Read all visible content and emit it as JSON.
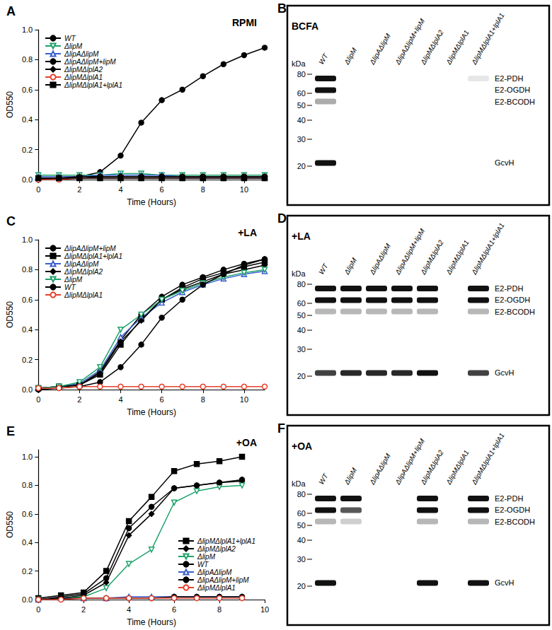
{
  "chart_data": [
    {
      "type": "line",
      "panel": "A",
      "title": "RPMI",
      "xlabel": "Time (Hours)",
      "ylabel": "OD550",
      "x": [
        0,
        1,
        2,
        3,
        4,
        5,
        6,
        7,
        8,
        9,
        10,
        11
      ],
      "xlim": [
        0,
        11
      ],
      "xticks": [
        0,
        2,
        4,
        6,
        8,
        10
      ],
      "ylim": [
        0,
        1.0
      ],
      "yticks": [
        {
          "value": 0,
          "label": "0.0"
        },
        {
          "value": 0.2,
          "label": "0.2"
        },
        {
          "value": 0.4,
          "label": "0.4"
        },
        {
          "value": 0.6,
          "label": "0.6"
        },
        {
          "value": 0.8,
          "label": "0.8"
        },
        {
          "value": 1.0,
          "label": "1.0"
        }
      ],
      "grid": false,
      "legend": "upper left",
      "series": [
        {
          "name": "WT",
          "color": "#000000",
          "marker": "circle",
          "values": [
            0.0,
            0.01,
            0.02,
            0.05,
            0.16,
            0.38,
            0.53,
            0.6,
            0.69,
            0.77,
            0.83,
            0.88
          ]
        },
        {
          "name": "ΔlipM",
          "color": "#1fa36b",
          "marker": "open triangle-down",
          "values": [
            0.03,
            0.03,
            0.03,
            0.03,
            0.04,
            0.04,
            0.03,
            0.03,
            0.03,
            0.03,
            0.03,
            0.03
          ]
        },
        {
          "name": "ΔlipAΔlipM",
          "color": "#3a5fcd",
          "marker": "open triangle",
          "values": [
            0.02,
            0.02,
            0.02,
            0.03,
            0.03,
            0.03,
            0.03,
            0.02,
            0.02,
            0.02,
            0.02,
            0.02
          ]
        },
        {
          "name": "ΔlipAΔlipM+lipM",
          "color": "#000000",
          "marker": "circle",
          "values": [
            0.01,
            0.01,
            0.01,
            0.02,
            0.02,
            0.02,
            0.02,
            0.02,
            0.02,
            0.02,
            0.02,
            0.02
          ]
        },
        {
          "name": "ΔlipMΔlplA2",
          "color": "#000000",
          "marker": "diamond",
          "values": [
            0.01,
            0.01,
            0.02,
            0.02,
            0.02,
            0.02,
            0.02,
            0.02,
            0.02,
            0.02,
            0.02,
            0.02
          ]
        },
        {
          "name": "ΔlipMΔlplA1",
          "color": "#e8412c",
          "marker": "open circle",
          "values": [
            0.0,
            0.0,
            0.01,
            0.01,
            0.01,
            0.01,
            0.01,
            0.01,
            0.01,
            0.01,
            0.01,
            0.01
          ]
        },
        {
          "name": "ΔlipMΔlplA1+lplA1",
          "color": "#000000",
          "marker": "square",
          "values": [
            0.01,
            0.01,
            0.01,
            0.01,
            0.01,
            0.01,
            0.01,
            0.01,
            0.01,
            0.01,
            0.01,
            0.01
          ]
        }
      ]
    },
    {
      "type": "line",
      "panel": "C",
      "title": "+LA",
      "xlabel": "Time (Hours)",
      "ylabel": "OD550",
      "x": [
        0,
        1,
        2,
        3,
        4,
        5,
        6,
        7,
        8,
        9,
        10,
        11
      ],
      "xlim": [
        0,
        11
      ],
      "xticks": [
        0,
        2,
        4,
        6,
        8,
        10
      ],
      "ylim": [
        0,
        1.0
      ],
      "yticks": [
        {
          "value": 0,
          "label": "0.0"
        },
        {
          "value": 0.2,
          "label": "0.2"
        },
        {
          "value": 0.4,
          "label": "0.4"
        },
        {
          "value": 0.6,
          "label": "0.6"
        },
        {
          "value": 0.8,
          "label": "0.8"
        },
        {
          "value": 1.0,
          "label": "1.0"
        }
      ],
      "grid": false,
      "legend": "upper left",
      "series": [
        {
          "name": "ΔlipAΔlipM+lipM",
          "color": "#000000",
          "marker": "circle",
          "values": [
            0.01,
            0.02,
            0.03,
            0.12,
            0.33,
            0.5,
            0.62,
            0.7,
            0.75,
            0.8,
            0.84,
            0.87
          ]
        },
        {
          "name": "ΔlipMΔlplA1+lplA1",
          "color": "#000000",
          "marker": "square",
          "values": [
            0.01,
            0.02,
            0.03,
            0.1,
            0.3,
            0.47,
            0.6,
            0.68,
            0.74,
            0.78,
            0.82,
            0.85
          ]
        },
        {
          "name": "ΔlipAΔlipM",
          "color": "#3a5fcd",
          "marker": "open triangle",
          "values": [
            0.01,
            0.02,
            0.04,
            0.13,
            0.35,
            0.48,
            0.58,
            0.65,
            0.7,
            0.74,
            0.77,
            0.79
          ]
        },
        {
          "name": "ΔlipMΔlplA2",
          "color": "#000000",
          "marker": "diamond",
          "values": [
            0.01,
            0.02,
            0.03,
            0.11,
            0.32,
            0.46,
            0.6,
            0.67,
            0.72,
            0.77,
            0.8,
            0.83
          ]
        },
        {
          "name": "ΔlipM",
          "color": "#1fa36b",
          "marker": "open triangle-down",
          "values": [
            0.01,
            0.02,
            0.05,
            0.15,
            0.4,
            0.5,
            0.6,
            0.66,
            0.71,
            0.75,
            0.78,
            0.8
          ]
        },
        {
          "name": "WT",
          "color": "#000000",
          "marker": "circle",
          "values": [
            0.0,
            0.01,
            0.02,
            0.05,
            0.15,
            0.3,
            0.48,
            0.6,
            0.7,
            0.77,
            0.83,
            0.87
          ]
        },
        {
          "name": "ΔlipMΔlplA1",
          "color": "#e8412c",
          "marker": "open circle",
          "values": [
            0.01,
            0.01,
            0.02,
            0.02,
            0.02,
            0.02,
            0.02,
            0.02,
            0.02,
            0.02,
            0.02,
            0.02
          ]
        }
      ]
    },
    {
      "type": "line",
      "panel": "E",
      "title": "+OA",
      "xlabel": "Time (Hours)",
      "ylabel": "OD550",
      "x": [
        0,
        1,
        2,
        3,
        4,
        5,
        6,
        7,
        8,
        9
      ],
      "xlim": [
        0,
        10
      ],
      "xticks": [
        0,
        2,
        4,
        6,
        8,
        10
      ],
      "ylim": [
        0,
        1.05
      ],
      "yticks": [
        {
          "value": 0,
          "label": "0.0"
        },
        {
          "value": 0.2,
          "label": "0.2"
        },
        {
          "value": 0.4,
          "label": "0.4"
        },
        {
          "value": 0.6,
          "label": "0.6"
        },
        {
          "value": 0.8,
          "label": "0.8"
        },
        {
          "value": 1.0,
          "label": "1.0"
        }
      ],
      "grid": false,
      "legend": "lower right",
      "series": [
        {
          "name": "ΔlipMΔlplA1+lplA1",
          "color": "#000000",
          "marker": "square",
          "values": [
            0.01,
            0.03,
            0.05,
            0.2,
            0.55,
            0.72,
            0.9,
            0.95,
            0.97,
            1.0
          ]
        },
        {
          "name": "ΔlipMΔlplA2",
          "color": "#000000",
          "marker": "diamond",
          "values": [
            0.0,
            0.01,
            0.03,
            0.12,
            0.45,
            0.6,
            0.78,
            0.8,
            0.82,
            0.83
          ]
        },
        {
          "name": "ΔlipM",
          "color": "#1fa36b",
          "marker": "open triangle-down",
          "values": [
            0.0,
            0.01,
            0.02,
            0.08,
            0.25,
            0.35,
            0.68,
            0.76,
            0.79,
            0.8
          ]
        },
        {
          "name": "WT",
          "color": "#000000",
          "marker": "circle",
          "values": [
            0.0,
            0.02,
            0.04,
            0.15,
            0.5,
            0.65,
            0.78,
            0.8,
            0.82,
            0.84
          ]
        },
        {
          "name": "ΔlipAΔlipM",
          "color": "#3a5fcd",
          "marker": "open triangle",
          "values": [
            0.0,
            0.01,
            0.01,
            0.01,
            0.02,
            0.02,
            0.02,
            0.02,
            0.02,
            0.02
          ]
        },
        {
          "name": "ΔlipAΔlipM+lipM",
          "color": "#000000",
          "marker": "circle",
          "values": [
            0.0,
            0.01,
            0.01,
            0.01,
            0.01,
            0.01,
            0.02,
            0.02,
            0.02,
            0.02
          ]
        },
        {
          "name": "ΔlipMΔlplA1",
          "color": "#e8412c",
          "marker": "open circle",
          "values": [
            0.0,
            0.0,
            0.01,
            0.01,
            0.01,
            0.01,
            0.01,
            0.01,
            0.01,
            0.01
          ]
        }
      ]
    }
  ],
  "blots": [
    {
      "panel": "B",
      "title": "BCFA",
      "unit": "kDa",
      "lanes": [
        "WT",
        "ΔlipM",
        "ΔlipAΔlipM",
        "ΔlipAΔlipM+lipM",
        "ΔlipMΔlplA2",
        "ΔlipMΔlplA1",
        "ΔlipMΔlplA1+lplA1"
      ],
      "markers": [
        80,
        60,
        50,
        40,
        30,
        20
      ],
      "bands": [
        {
          "label": "E2-PDH",
          "kda": 75,
          "intensity": [
            1,
            0,
            0,
            0,
            0,
            0,
            0.1
          ]
        },
        {
          "label": "E2-OGDH",
          "kda": 63,
          "intensity": [
            1,
            0,
            0,
            0,
            0,
            0,
            0
          ]
        },
        {
          "label": "E2-BCODH",
          "kda": 53,
          "intensity": [
            0.35,
            0,
            0,
            0,
            0,
            0,
            0
          ]
        },
        {
          "label": "GcvH",
          "kda": 21,
          "intensity": [
            1,
            0,
            0,
            0,
            0,
            0,
            0
          ]
        }
      ]
    },
    {
      "panel": "D",
      "title": "+LA",
      "unit": "kDa",
      "lanes": [
        "WT",
        "ΔlipM",
        "ΔlipAΔlipM",
        "ΔlipAΔlipM+lipM",
        "ΔlipMΔlplA2",
        "ΔlipMΔlplA1",
        "ΔlipMΔlplA1+lplA1"
      ],
      "markers": [
        80,
        60,
        50,
        40,
        30,
        20
      ],
      "bands": [
        {
          "label": "E2-PDH",
          "kda": 75,
          "intensity": [
            1,
            1,
            1,
            1,
            1,
            0,
            1
          ]
        },
        {
          "label": "E2-OGDH",
          "kda": 63,
          "intensity": [
            1,
            1,
            1,
            1,
            1,
            0,
            1
          ]
        },
        {
          "label": "E2-BCODH",
          "kda": 53,
          "intensity": [
            0.3,
            0.3,
            0.3,
            0.3,
            0.3,
            0,
            0.3
          ]
        },
        {
          "label": "GcvH",
          "kda": 21,
          "intensity": [
            0.8,
            0.9,
            0.9,
            0.9,
            1,
            0,
            0.8
          ]
        }
      ]
    },
    {
      "panel": "F",
      "title": "+OA",
      "unit": "kDa",
      "lanes": [
        "WT",
        "ΔlipM",
        "ΔlipAΔlipM",
        "ΔlipAΔlipM+lipM",
        "ΔlipMΔlplA2",
        "ΔlipMΔlplA1",
        "ΔlipMΔlplA1+lplA1"
      ],
      "markers": [
        80,
        60,
        50,
        40,
        30,
        20
      ],
      "bands": [
        {
          "label": "E2-PDH",
          "kda": 75,
          "intensity": [
            1,
            1,
            0,
            0,
            1,
            0,
            1
          ]
        },
        {
          "label": "E2-OGDH",
          "kda": 63,
          "intensity": [
            1,
            0.7,
            0,
            0,
            1,
            0,
            1
          ]
        },
        {
          "label": "E2-BCODH",
          "kda": 53,
          "intensity": [
            0.3,
            0.2,
            0,
            0,
            0.3,
            0,
            0.3
          ]
        },
        {
          "label": "GcvH",
          "kda": 21,
          "intensity": [
            1,
            0,
            0,
            0,
            1,
            0,
            1
          ]
        }
      ]
    }
  ]
}
